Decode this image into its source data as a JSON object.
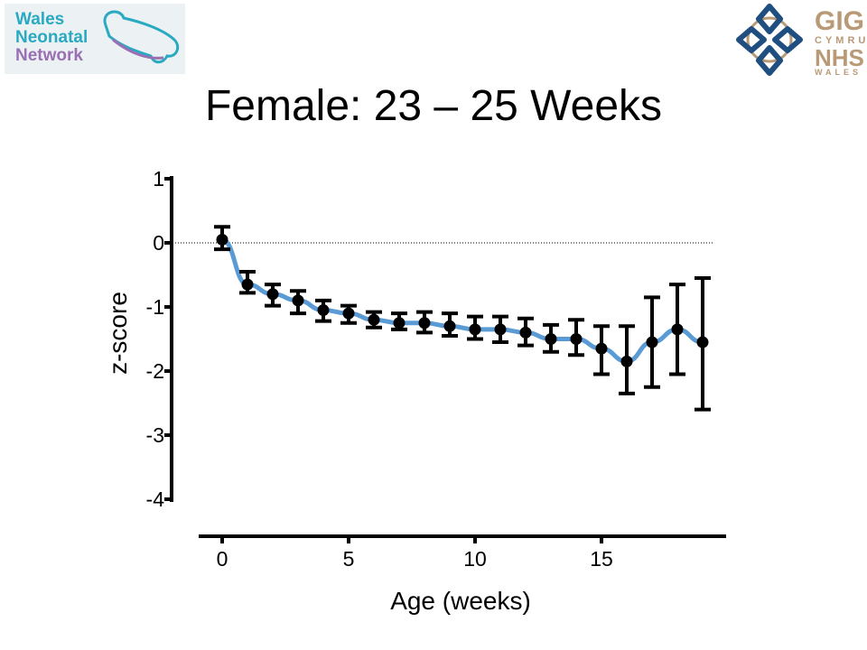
{
  "slide": {
    "title": "Female: 23 – 25 Weeks"
  },
  "logos": {
    "left": {
      "lines": [
        "Wales",
        "Neonatal",
        "Network"
      ],
      "colors": [
        "#29a9c2",
        "#29a9c2",
        "#9a6fb3"
      ],
      "icon": "infant-outline-icon"
    },
    "right": {
      "gig": "GIG",
      "cymru": "CYMRU",
      "nhs": "NHS",
      "wales": "WALES",
      "icon": "celtic-knot-icon",
      "colors": {
        "knot": "#1f4e80",
        "text": "#b99a77"
      }
    }
  },
  "chart_data": {
    "type": "line",
    "xlabel": "Age (weeks)",
    "ylabel": "z-score",
    "xlim": [
      -0.5,
      19.5
    ],
    "ylim": [
      -4,
      1
    ],
    "xticks": [
      0,
      5,
      10,
      15
    ],
    "yticks": [
      1,
      0,
      -1,
      -2,
      -3,
      -4
    ],
    "reference_line": 0,
    "line_color": "#5b9bd5",
    "marker_color": "#000000",
    "series": [
      {
        "x": [
          0,
          1,
          2,
          3,
          4,
          5,
          6,
          7,
          8,
          9,
          10,
          11,
          12,
          13,
          14,
          15,
          16,
          17,
          18,
          19
        ],
        "y": [
          0.05,
          -0.65,
          -0.8,
          -0.9,
          -1.05,
          -1.1,
          -1.2,
          -1.25,
          -1.25,
          -1.3,
          -1.35,
          -1.35,
          -1.4,
          -1.5,
          -1.5,
          -1.65,
          -1.85,
          -1.55,
          -1.35,
          -1.55
        ],
        "upper": [
          0.25,
          -0.45,
          -0.65,
          -0.75,
          -0.9,
          -0.98,
          -1.08,
          -1.1,
          -1.08,
          -1.1,
          -1.15,
          -1.15,
          -1.18,
          -1.28,
          -1.2,
          -1.3,
          -1.3,
          -0.85,
          -0.65,
          -0.55
        ],
        "lower": [
          -0.1,
          -0.78,
          -0.98,
          -1.1,
          -1.22,
          -1.25,
          -1.32,
          -1.35,
          -1.4,
          -1.45,
          -1.5,
          -1.55,
          -1.6,
          -1.7,
          -1.75,
          -2.05,
          -2.35,
          -2.25,
          -2.05,
          -2.6
        ]
      }
    ]
  }
}
